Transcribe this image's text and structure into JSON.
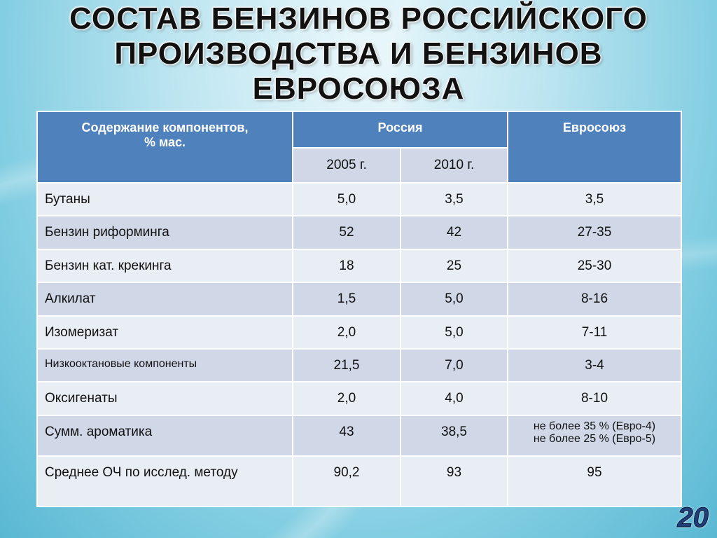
{
  "title_lines": [
    "СОСТАВ БЕНЗИНОВ РОССИЙСКОГО",
    "ПРОИЗВОДСТВА И БЕНЗИНОВ",
    "ЕВРОСОЮЗА"
  ],
  "table": {
    "header": {
      "component_line1": "Содержание компонентов,",
      "component_line2": "% мас.",
      "russia": "Россия",
      "eu": "Евросоюз",
      "y2005": "2005 г.",
      "y2010": "2010 г."
    },
    "rows": [
      {
        "name": "Бутаны",
        "r2005": "5,0",
        "r2010": "3,5",
        "eu": "3,5"
      },
      {
        "name": "Бензин риформинга",
        "r2005": "52",
        "r2010": "42",
        "eu": "27-35"
      },
      {
        "name": "Бензин кат. крекинга",
        "r2005": "18",
        "r2010": "25",
        "eu": "25-30"
      },
      {
        "name": "Алкилат",
        "r2005": "1,5",
        "r2010": "5,0",
        "eu": "8-16"
      },
      {
        "name": "Изомеризат",
        "r2005": "2,0",
        "r2010": "5,0",
        "eu": "7-11"
      },
      {
        "name": "Низкооктановые компоненты",
        "r2005": "21,5",
        "r2010": "7,0",
        "eu": "3-4"
      },
      {
        "name": "Оксигенаты",
        "r2005": "2,0",
        "r2010": "4,0",
        "eu": "8-10"
      },
      {
        "name": "Сумм. ароматика",
        "r2005": "43",
        "r2010": "38,5",
        "eu": "не более 35 % (Евро-4)",
        "eu2": "не более 25 % (Евро-5)"
      },
      {
        "name": "Среднее ОЧ по исслед. методу",
        "r2005": "90,2",
        "r2010": "93",
        "eu": "95"
      }
    ]
  },
  "page_number": "20"
}
